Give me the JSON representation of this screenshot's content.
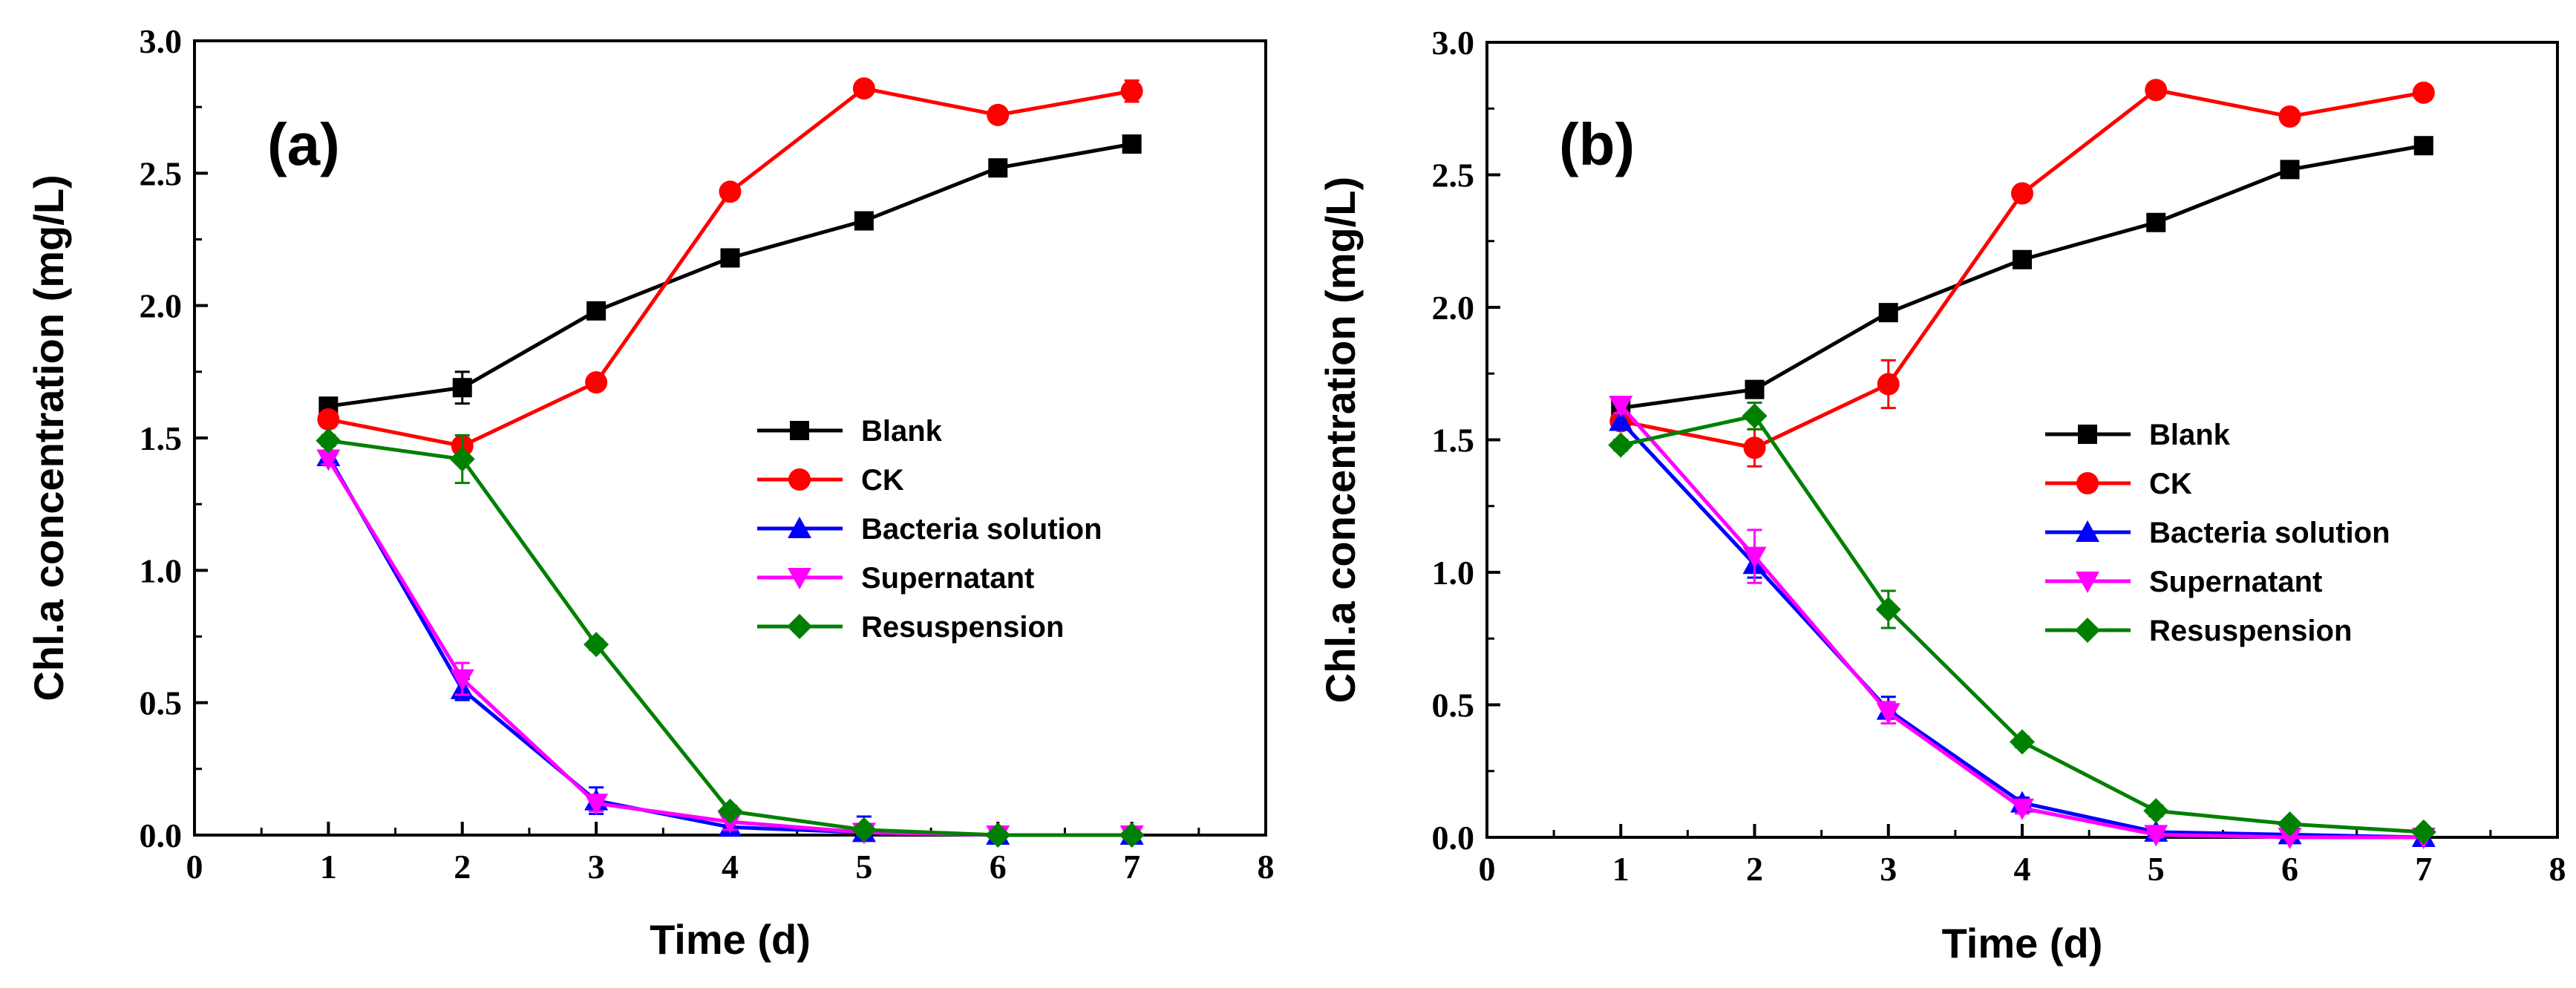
{
  "chart_data": [
    {
      "type": "line",
      "panel_label": "(a)",
      "xlabel": "Time (d)",
      "ylabel": "Chl.a concentration (mg/L)",
      "xlim": [
        0,
        8
      ],
      "ylim": [
        0,
        3.0
      ],
      "xticks": [
        "0",
        "1",
        "2",
        "3",
        "4",
        "5",
        "6",
        "7",
        "8"
      ],
      "yticks": [
        "0.0",
        "0.5",
        "1.0",
        "1.5",
        "2.0",
        "2.5",
        "3.0"
      ],
      "legend_position": "center-right",
      "x": [
        1,
        2,
        3,
        4,
        5,
        6,
        7
      ],
      "series": [
        {
          "name": "Blank",
          "color": "#000000",
          "marker": "square",
          "values": [
            1.62,
            1.69,
            1.98,
            2.18,
            2.32,
            2.52,
            2.61
          ],
          "errors": [
            0.02,
            0.06,
            0.02,
            0.02,
            0.03,
            0.02,
            0.03
          ]
        },
        {
          "name": "CK",
          "color": "#ff0000",
          "marker": "circle",
          "values": [
            1.57,
            1.47,
            1.71,
            2.43,
            2.82,
            2.72,
            2.81
          ],
          "errors": [
            0.02,
            0.02,
            0.02,
            0.02,
            0.02,
            0.02,
            0.04
          ]
        },
        {
          "name": "Bacteria solution",
          "color": "#0000ff",
          "marker": "triangle-up",
          "values": [
            1.43,
            0.55,
            0.13,
            0.03,
            0.01,
            0.0,
            0.0
          ],
          "errors": [
            0.02,
            0.04,
            0.05,
            0.03,
            0.06,
            0.0,
            0.0
          ]
        },
        {
          "name": "Supernatant",
          "color": "#ff00ff",
          "marker": "triangle-down",
          "values": [
            1.42,
            0.59,
            0.12,
            0.05,
            0.01,
            0.0,
            0.0
          ],
          "errors": [
            0.02,
            0.06,
            0.03,
            0.03,
            0.02,
            0.0,
            0.0
          ]
        },
        {
          "name": "Resuspension",
          "color": "#008000",
          "marker": "diamond",
          "values": [
            1.49,
            1.42,
            0.72,
            0.09,
            0.02,
            0.0,
            0.0
          ],
          "errors": [
            0.02,
            0.09,
            0.02,
            0.02,
            0.02,
            0.0,
            0.0
          ]
        }
      ]
    },
    {
      "type": "line",
      "panel_label": "(b)",
      "xlabel": "Time (d)",
      "ylabel": "Chl.a concentration (mg/L)",
      "xlim": [
        0,
        8
      ],
      "ylim": [
        0,
        3.0
      ],
      "xticks": [
        "0",
        "1",
        "2",
        "3",
        "4",
        "5",
        "6",
        "7",
        "8"
      ],
      "yticks": [
        "0.0",
        "0.5",
        "1.0",
        "1.5",
        "2.0",
        "2.5",
        "3.0"
      ],
      "legend_position": "center-right",
      "x": [
        1,
        2,
        3,
        4,
        5,
        6,
        7
      ],
      "series": [
        {
          "name": "Blank",
          "color": "#000000",
          "marker": "square",
          "values": [
            1.62,
            1.69,
            1.98,
            2.18,
            2.32,
            2.52,
            2.61
          ],
          "errors": [
            0.02,
            0.02,
            0.02,
            0.02,
            0.02,
            0.02,
            0.02
          ]
        },
        {
          "name": "CK",
          "color": "#ff0000",
          "marker": "circle",
          "values": [
            1.57,
            1.47,
            1.71,
            2.43,
            2.82,
            2.72,
            2.81
          ],
          "errors": [
            0.02,
            0.07,
            0.09,
            0.02,
            0.02,
            0.02,
            0.02
          ]
        },
        {
          "name": "Bacteria solution",
          "color": "#0000ff",
          "marker": "triangle-up",
          "values": [
            1.57,
            1.03,
            0.48,
            0.13,
            0.02,
            0.01,
            0.0
          ],
          "errors": [
            0.03,
            0.05,
            0.05,
            0.02,
            0.01,
            0.0,
            0.0
          ]
        },
        {
          "name": "Supernatant",
          "color": "#ff00ff",
          "marker": "triangle-down",
          "values": [
            1.63,
            1.06,
            0.47,
            0.11,
            0.01,
            0.0,
            0.0
          ],
          "errors": [
            0.03,
            0.1,
            0.04,
            0.02,
            0.01,
            0.0,
            0.0
          ]
        },
        {
          "name": "Resuspension",
          "color": "#008000",
          "marker": "diamond",
          "values": [
            1.48,
            1.59,
            0.86,
            0.36,
            0.1,
            0.05,
            0.02
          ],
          "errors": [
            0.02,
            0.05,
            0.07,
            0.02,
            0.02,
            0.01,
            0.01
          ]
        }
      ]
    }
  ]
}
